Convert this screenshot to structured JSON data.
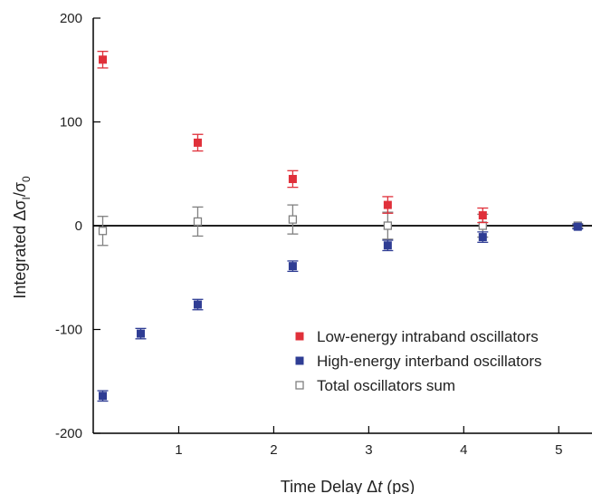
{
  "chart_data": {
    "type": "scatter",
    "xlabel": "Time Delay Δt (ps)",
    "ylabel": "Integrated ΔσI/σ0",
    "xlim": [
      0.1,
      5.35
    ],
    "ylim": [
      -200,
      200
    ],
    "x_ticks": [
      1,
      2,
      3,
      4,
      5
    ],
    "y_ticks": [
      -200,
      -100,
      0,
      100,
      200
    ],
    "zero_line": true,
    "grid": false,
    "legend_position": "bottom-right",
    "series": [
      {
        "name": "Low-energy intraband oscillators",
        "color": "#e0303a",
        "marker": "filled-square",
        "points": [
          {
            "x": 0.2,
            "y": 160,
            "err": 8
          },
          {
            "x": 1.2,
            "y": 80,
            "err": 8
          },
          {
            "x": 2.2,
            "y": 45,
            "err": 8
          },
          {
            "x": 3.2,
            "y": 20,
            "err": 8
          },
          {
            "x": 4.2,
            "y": 10,
            "err": 7
          }
        ]
      },
      {
        "name": "High-energy interband oscillators",
        "color": "#2f3d94",
        "marker": "filled-square",
        "points": [
          {
            "x": 0.2,
            "y": -164,
            "err": 5
          },
          {
            "x": 0.6,
            "y": -104,
            "err": 5
          },
          {
            "x": 1.2,
            "y": -76,
            "err": 5
          },
          {
            "x": 2.2,
            "y": -39,
            "err": 5
          },
          {
            "x": 3.2,
            "y": -19,
            "err": 5
          },
          {
            "x": 4.2,
            "y": -11,
            "err": 5
          },
          {
            "x": 5.2,
            "y": -1,
            "err": 2
          }
        ]
      },
      {
        "name": "Total oscillators sum",
        "color": "#808080",
        "marker": "open-square",
        "points": [
          {
            "x": 0.2,
            "y": -5,
            "err": 14
          },
          {
            "x": 1.2,
            "y": 4,
            "err": 14
          },
          {
            "x": 2.2,
            "y": 6,
            "err": 14
          },
          {
            "x": 3.2,
            "y": 0,
            "err": 13
          },
          {
            "x": 4.2,
            "y": 0,
            "err": 11
          },
          {
            "x": 5.2,
            "y": 0,
            "err": 2
          }
        ]
      }
    ]
  }
}
